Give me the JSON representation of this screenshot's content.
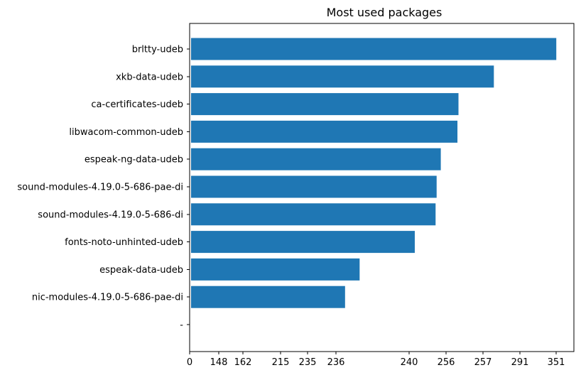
{
  "chart_data": {
    "type": "bar",
    "orientation": "horizontal",
    "title": "Most used packages",
    "xlabel": "",
    "ylabel": "",
    "bar_color": "#1f77b4",
    "categories": [
      "brltty-udeb",
      "xkb-data-udeb",
      "ca-certificates-udeb",
      "libwacom-common-udeb",
      "espeak-ng-data-udeb",
      "sound-modules-4.19.0-5-686-pae-di",
      "sound-modules-4.19.0-5-686-di",
      "fonts-noto-unhinted-udeb",
      "espeak-data-udeb",
      "nic-modules-4.19.0-5-686-pae-di",
      "-"
    ],
    "values": [
      351,
      291,
      257,
      256,
      240,
      236,
      235,
      215,
      162,
      148,
      0
    ],
    "x_tick_labels": [
      "0",
      "148",
      "162",
      "215",
      "235",
      "236",
      "240",
      "256",
      "257",
      "291",
      "351"
    ],
    "grid": false,
    "legend": false
  }
}
